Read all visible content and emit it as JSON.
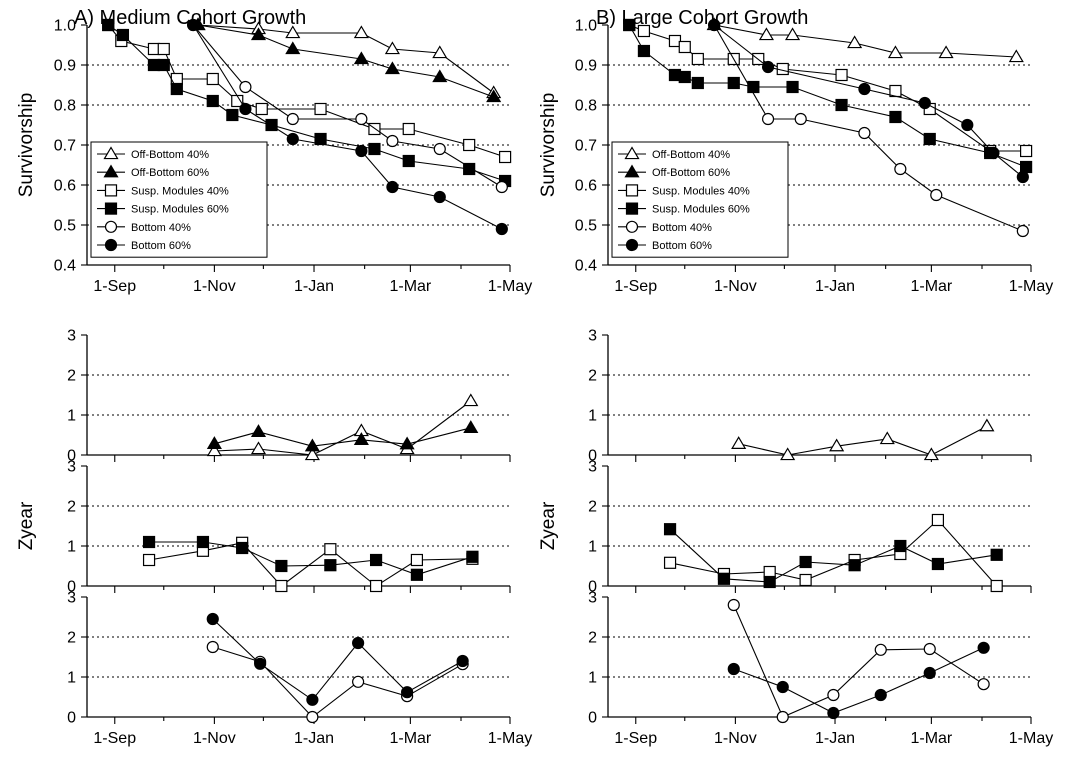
{
  "chart_data": [
    {
      "id": "A_surv",
      "type": "line",
      "title": "A) Medium Cohort Growth",
      "ylabel": "Survivorship",
      "ylim": [
        0.4,
        1.0
      ],
      "yticks": [
        "0.4",
        "0.5",
        "0.6",
        "0.7",
        "0.8",
        "0.9",
        "1.0"
      ],
      "ytick_values": [
        0.4,
        0.5,
        0.6,
        0.7,
        0.8,
        0.9,
        1.0
      ],
      "xlim": [
        "2010-08-15",
        "2011-05-01"
      ],
      "xticks": [
        "1-Sep",
        "1-Nov",
        "1-Jan",
        "1-Mar",
        "1-May"
      ],
      "xtick_values": [
        "2010-09-01",
        "2010-11-01",
        "2011-01-01",
        "2011-03-01",
        "2011-05-01"
      ],
      "grid": "horizontal-dotted",
      "legend": "lower-left",
      "series": [
        {
          "name": "Off-Bottom 40%",
          "marker": "triangle-open",
          "x": [
            "2010-10-22",
            "2010-11-28",
            "2010-12-19",
            "2011-01-30",
            "2011-02-18",
            "2011-03-19",
            "2011-04-21"
          ],
          "y": [
            1.0,
            0.99,
            0.98,
            0.98,
            0.94,
            0.93,
            0.83
          ]
        },
        {
          "name": "Off-Bottom 60%",
          "marker": "triangle-filled",
          "x": [
            "2010-10-22",
            "2010-11-28",
            "2010-12-19",
            "2011-01-30",
            "2011-02-18",
            "2011-03-19",
            "2011-04-21"
          ],
          "y": [
            1.0,
            0.975,
            0.94,
            0.915,
            0.89,
            0.87,
            0.82
          ]
        },
        {
          "name": "Susp. Modules 40%",
          "marker": "square-open",
          "x": [
            "2010-08-28",
            "2010-09-05",
            "2010-09-25",
            "2010-10-01",
            "2010-10-09",
            "2010-10-31",
            "2010-11-15",
            "2010-11-30",
            "2011-01-05",
            "2011-02-07",
            "2011-02-28",
            "2011-04-06",
            "2011-04-28"
          ],
          "y": [
            1.0,
            0.96,
            0.94,
            0.94,
            0.865,
            0.865,
            0.81,
            0.79,
            0.79,
            0.74,
            0.74,
            0.7,
            0.67
          ]
        },
        {
          "name": "Susp. Modules 60%",
          "marker": "square-filled",
          "x": [
            "2010-08-28",
            "2010-09-06",
            "2010-09-25",
            "2010-10-01",
            "2010-10-09",
            "2010-10-31",
            "2010-11-12",
            "2010-12-06",
            "2011-01-05",
            "2011-02-07",
            "2011-02-28",
            "2011-04-06",
            "2011-04-28"
          ],
          "y": [
            1.0,
            0.975,
            0.9,
            0.9,
            0.84,
            0.81,
            0.775,
            0.75,
            0.715,
            0.69,
            0.66,
            0.64,
            0.61
          ]
        },
        {
          "name": "Bottom 40%",
          "marker": "circle-open",
          "x": [
            "2010-10-19",
            "2010-11-20",
            "2010-12-19",
            "2011-01-30",
            "2011-02-18",
            "2011-03-19",
            "2011-04-26"
          ],
          "y": [
            1.0,
            0.845,
            0.765,
            0.765,
            0.71,
            0.69,
            0.595
          ]
        },
        {
          "name": "Bottom 60%",
          "marker": "circle-filled",
          "x": [
            "2010-10-19",
            "2010-11-20",
            "2010-12-19",
            "2011-01-30",
            "2011-02-18",
            "2011-03-19",
            "2011-04-26"
          ],
          "y": [
            1.0,
            0.79,
            0.715,
            0.685,
            0.595,
            0.57,
            0.49
          ]
        }
      ]
    },
    {
      "id": "B_surv",
      "type": "line",
      "title": "B) Large Cohort Growth",
      "ylabel": "Survivorship",
      "ylim": [
        0.4,
        1.0
      ],
      "yticks": [
        "0.4",
        "0.5",
        "0.6",
        "0.7",
        "0.8",
        "0.9",
        "1.0"
      ],
      "ytick_values": [
        0.4,
        0.5,
        0.6,
        0.7,
        0.8,
        0.9,
        1.0
      ],
      "xlim": [
        "2010-08-15",
        "2011-05-01"
      ],
      "xticks": [
        "1-Sep",
        "1-Nov",
        "1-Jan",
        "1-Mar",
        "1-May"
      ],
      "xtick_values": [
        "2010-09-01",
        "2010-11-01",
        "2011-01-01",
        "2011-03-01",
        "2011-05-01"
      ],
      "grid": "horizontal-dotted",
      "legend": "lower-left",
      "series": [
        {
          "name": "Off-Bottom 40%",
          "marker": "triangle-open",
          "x": [
            "2010-10-19",
            "2010-11-20",
            "2010-12-06",
            "2011-01-13",
            "2011-02-07",
            "2011-03-10",
            "2011-04-22"
          ],
          "y": [
            1.0,
            0.975,
            0.975,
            0.955,
            0.93,
            0.93,
            0.92
          ]
        },
        {
          "name": "Susp. Modules 40%",
          "marker": "square-open",
          "x": [
            "2010-08-28",
            "2010-09-06",
            "2010-09-25",
            "2010-10-01",
            "2010-10-09",
            "2010-10-31",
            "2010-11-15",
            "2010-11-30",
            "2011-01-05",
            "2011-02-07",
            "2011-02-28",
            "2011-04-06",
            "2011-04-28"
          ],
          "y": [
            1.0,
            0.985,
            0.96,
            0.945,
            0.915,
            0.915,
            0.915,
            0.89,
            0.875,
            0.835,
            0.79,
            0.685,
            0.685
          ]
        },
        {
          "name": "Susp. Modules 60%",
          "marker": "square-filled",
          "x": [
            "2010-08-28",
            "2010-09-06",
            "2010-09-25",
            "2010-10-01",
            "2010-10-09",
            "2010-10-31",
            "2010-11-12",
            "2010-12-06",
            "2011-01-05",
            "2011-02-07",
            "2011-02-28",
            "2011-04-06",
            "2011-04-28"
          ],
          "y": [
            1.0,
            0.935,
            0.875,
            0.87,
            0.855,
            0.855,
            0.845,
            0.845,
            0.8,
            0.77,
            0.715,
            0.68,
            0.645
          ]
        },
        {
          "name": "Bottom 40%",
          "marker": "circle-open",
          "x": [
            "2010-10-19",
            "2010-11-21",
            "2010-12-11",
            "2011-01-19",
            "2011-02-10",
            "2011-03-04",
            "2011-04-26"
          ],
          "y": [
            1.0,
            0.765,
            0.765,
            0.73,
            0.64,
            0.575,
            0.485
          ]
        },
        {
          "name": "Bottom 60%",
          "marker": "circle-filled",
          "x": [
            "2010-10-19",
            "2010-11-21",
            "2011-01-19",
            "2011-02-25",
            "2011-03-23",
            "2011-04-08",
            "2011-04-26"
          ],
          "y": [
            1.0,
            0.895,
            0.84,
            0.805,
            0.75,
            0.68,
            0.62
          ]
        }
      ]
    },
    {
      "id": "A_z1",
      "type": "line",
      "ylim": [
        0,
        3
      ],
      "yticks": [
        "0",
        "1",
        "2",
        "3"
      ],
      "ytick_values": [
        0,
        1,
        2,
        3
      ],
      "xlim": [
        "2010-08-15",
        "2011-05-01"
      ],
      "grid": "horizontal-dotted",
      "series": [
        {
          "name": "Off-Bottom 40%",
          "marker": "triangle-open",
          "x": [
            "2010-11-01",
            "2010-11-28",
            "2010-12-31",
            "2011-01-30",
            "2011-02-27",
            "2011-04-07"
          ],
          "y": [
            0.1,
            0.15,
            0.0,
            0.6,
            0.15,
            1.35
          ]
        },
        {
          "name": "Off-Bottom 60%",
          "marker": "triangle-filled",
          "x": [
            "2010-11-01",
            "2010-11-28",
            "2010-12-31",
            "2011-01-30",
            "2011-02-27",
            "2011-04-07"
          ],
          "y": [
            0.28,
            0.58,
            0.22,
            0.38,
            0.27,
            0.68
          ]
        }
      ]
    },
    {
      "id": "B_z1",
      "type": "line",
      "ylim": [
        0,
        3
      ],
      "yticks": [
        "0",
        "1",
        "2",
        "3"
      ],
      "ytick_values": [
        0,
        1,
        2,
        3
      ],
      "xlim": [
        "2010-08-15",
        "2011-05-01"
      ],
      "grid": "horizontal-dotted",
      "series": [
        {
          "name": "Off-Bottom 40%",
          "marker": "triangle-open",
          "x": [
            "2010-11-03",
            "2010-12-03",
            "2011-01-02",
            "2011-02-02",
            "2011-03-01",
            "2011-04-04"
          ],
          "y": [
            0.28,
            0.0,
            0.22,
            0.4,
            0.0,
            0.72
          ]
        }
      ]
    },
    {
      "id": "A_z2",
      "type": "line",
      "ylabel": "Zyear",
      "ylim": [
        0,
        3
      ],
      "yticks": [
        "0",
        "1",
        "2",
        "3"
      ],
      "ytick_values": [
        0,
        1,
        2,
        3
      ],
      "xlim": [
        "2010-08-15",
        "2011-05-01"
      ],
      "grid": "horizontal-dotted",
      "series": [
        {
          "name": "Susp. Modules 40%",
          "marker": "square-open",
          "x": [
            "2010-09-22",
            "2010-10-25",
            "2010-11-18",
            "2010-12-12",
            "2011-01-11",
            "2011-02-08",
            "2011-03-05",
            "2011-04-08"
          ],
          "y": [
            0.65,
            0.88,
            1.08,
            0.0,
            0.92,
            0.0,
            0.65,
            0.68
          ]
        },
        {
          "name": "Susp. Modules 60%",
          "marker": "square-filled",
          "x": [
            "2010-09-22",
            "2010-10-25",
            "2010-11-18",
            "2010-12-12",
            "2011-01-11",
            "2011-02-08",
            "2011-03-05",
            "2011-04-08"
          ],
          "y": [
            1.1,
            1.1,
            0.95,
            0.5,
            0.52,
            0.65,
            0.28,
            0.73
          ]
        }
      ]
    },
    {
      "id": "B_z2",
      "type": "line",
      "ylabel": "Zyear",
      "ylim": [
        0,
        3
      ],
      "yticks": [
        "0",
        "1",
        "2",
        "3"
      ],
      "ytick_values": [
        0,
        1,
        2,
        3
      ],
      "xlim": [
        "2010-08-15",
        "2011-05-01"
      ],
      "grid": "horizontal-dotted",
      "series": [
        {
          "name": "Susp. Modules 40%",
          "marker": "square-open",
          "x": [
            "2010-09-22",
            "2010-10-25",
            "2010-11-22",
            "2010-12-14",
            "2011-01-13",
            "2011-02-10",
            "2011-03-05",
            "2011-04-10"
          ],
          "y": [
            0.58,
            0.3,
            0.35,
            0.15,
            0.65,
            0.8,
            1.65,
            0.0
          ]
        },
        {
          "name": "Susp. Modules 60%",
          "marker": "square-filled",
          "x": [
            "2010-09-22",
            "2010-10-25",
            "2010-11-22",
            "2010-12-14",
            "2011-01-13",
            "2011-02-10",
            "2011-03-05",
            "2011-04-10"
          ],
          "y": [
            1.42,
            0.18,
            0.1,
            0.6,
            0.52,
            1.0,
            0.55,
            0.78
          ]
        }
      ]
    },
    {
      "id": "A_z3",
      "type": "line",
      "ylim": [
        0,
        3
      ],
      "yticks": [
        "0",
        "1",
        "2",
        "3"
      ],
      "ytick_values": [
        0,
        1,
        2,
        3
      ],
      "xlim": [
        "2010-08-15",
        "2011-05-01"
      ],
      "xticks": [
        "1-Sep",
        "1-Nov",
        "1-Jan",
        "1-Mar",
        "1-May"
      ],
      "xtick_values": [
        "2010-09-01",
        "2010-11-01",
        "2011-01-01",
        "2011-03-01",
        "2011-05-01"
      ],
      "grid": "horizontal-dotted",
      "series": [
        {
          "name": "Bottom 40%",
          "marker": "circle-open",
          "x": [
            "2010-10-31",
            "2010-11-29",
            "2010-12-31",
            "2011-01-28",
            "2011-02-27",
            "2011-04-02"
          ],
          "y": [
            1.75,
            1.38,
            0.0,
            0.88,
            0.52,
            1.32
          ]
        },
        {
          "name": "Bottom 60%",
          "marker": "circle-filled",
          "x": [
            "2010-10-31",
            "2010-11-29",
            "2010-12-31",
            "2011-01-28",
            "2011-02-27",
            "2011-04-02"
          ],
          "y": [
            2.45,
            1.33,
            0.43,
            1.85,
            0.62,
            1.4
          ]
        }
      ]
    },
    {
      "id": "B_z3",
      "type": "line",
      "ylim": [
        0,
        3
      ],
      "yticks": [
        "0",
        "1",
        "2",
        "3"
      ],
      "ytick_values": [
        0,
        1,
        2,
        3
      ],
      "xlim": [
        "2010-08-15",
        "2011-05-01"
      ],
      "xticks": [
        "1-Sep",
        "1-Nov",
        "1-Jan",
        "1-Mar",
        "1-May"
      ],
      "xtick_values": [
        "2010-09-01",
        "2010-11-01",
        "2011-01-01",
        "2011-03-01",
        "2011-05-01"
      ],
      "grid": "horizontal-dotted",
      "series": [
        {
          "name": "Bottom 40%",
          "marker": "circle-open",
          "x": [
            "2010-10-31",
            "2010-11-30",
            "2010-12-31",
            "2011-01-29",
            "2011-02-28",
            "2011-04-02"
          ],
          "y": [
            2.8,
            0.0,
            0.55,
            1.68,
            1.7,
            0.82
          ]
        },
        {
          "name": "Bottom 60%",
          "marker": "circle-filled",
          "x": [
            "2010-10-31",
            "2010-11-30",
            "2010-12-31",
            "2011-01-29",
            "2011-02-28",
            "2011-04-02"
          ],
          "y": [
            1.2,
            0.75,
            0.1,
            0.55,
            1.1,
            1.73
          ]
        }
      ]
    }
  ],
  "legend_entries": [
    {
      "label": "Off-Bottom 40%",
      "marker": "triangle-open"
    },
    {
      "label": "Off-Bottom 60%",
      "marker": "triangle-filled"
    },
    {
      "label": "Susp. Modules 40%",
      "marker": "square-open"
    },
    {
      "label": "Susp. Modules 60%",
      "marker": "square-filled"
    },
    {
      "label": "Bottom 40%",
      "marker": "circle-open"
    },
    {
      "label": "Bottom 60%",
      "marker": "circle-filled"
    }
  ],
  "colors": {
    "ink": "#000000",
    "background": "#ffffff"
  }
}
